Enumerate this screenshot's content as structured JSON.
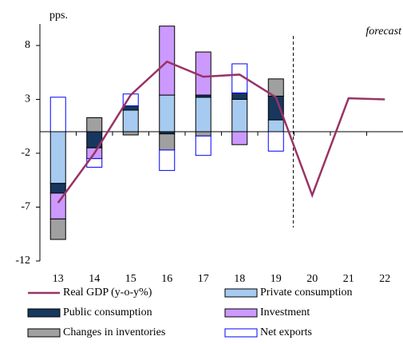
{
  "chart_data": {
    "type": "bar",
    "y_label": "pps.",
    "annotation": "forecast",
    "categories": [
      "13",
      "14",
      "15",
      "16",
      "17",
      "18",
      "19",
      "20",
      "21",
      "22"
    ],
    "series": [
      {
        "name": "Real GDP (y-o-y%)",
        "type": "line",
        "color": "#993366",
        "values": [
          -6.6,
          -2.0,
          3.4,
          6.5,
          5.1,
          5.3,
          3.2,
          -5.9,
          3.1,
          3.0
        ]
      },
      {
        "name": "Private consumption",
        "type": "bar",
        "color": "#a6caf0",
        "values": [
          -4.8,
          null,
          2.0,
          3.4,
          3.2,
          3.0,
          1.1,
          null,
          null,
          null
        ]
      },
      {
        "name": "Public consumption",
        "type": "bar",
        "color": "#17375e",
        "values": [
          -0.9,
          -1.5,
          0.4,
          -0.2,
          0.2,
          0.6,
          2.2,
          null,
          null,
          null
        ]
      },
      {
        "name": "Investment",
        "type": "bar",
        "color": "#cc99ff",
        "values": [
          -2.4,
          -1.0,
          null,
          6.4,
          4.0,
          -1.2,
          null,
          null,
          null,
          null
        ]
      },
      {
        "name": "Changes in inventories",
        "type": "bar",
        "color": "#a0a0a0",
        "values": [
          -1.9,
          1.3,
          -0.3,
          -1.5,
          -0.4,
          null,
          1.6,
          null,
          null,
          null
        ]
      },
      {
        "name": "Net exports",
        "type": "bar",
        "color": "#ffffff",
        "values": [
          3.2,
          -0.8,
          1.1,
          -1.9,
          -1.8,
          2.7,
          -1.8,
          null,
          null,
          null
        ]
      }
    ],
    "ylim": [
      -12,
      10
    ],
    "yticks": [
      -12,
      -7,
      -2,
      3,
      8
    ],
    "grid": false
  }
}
